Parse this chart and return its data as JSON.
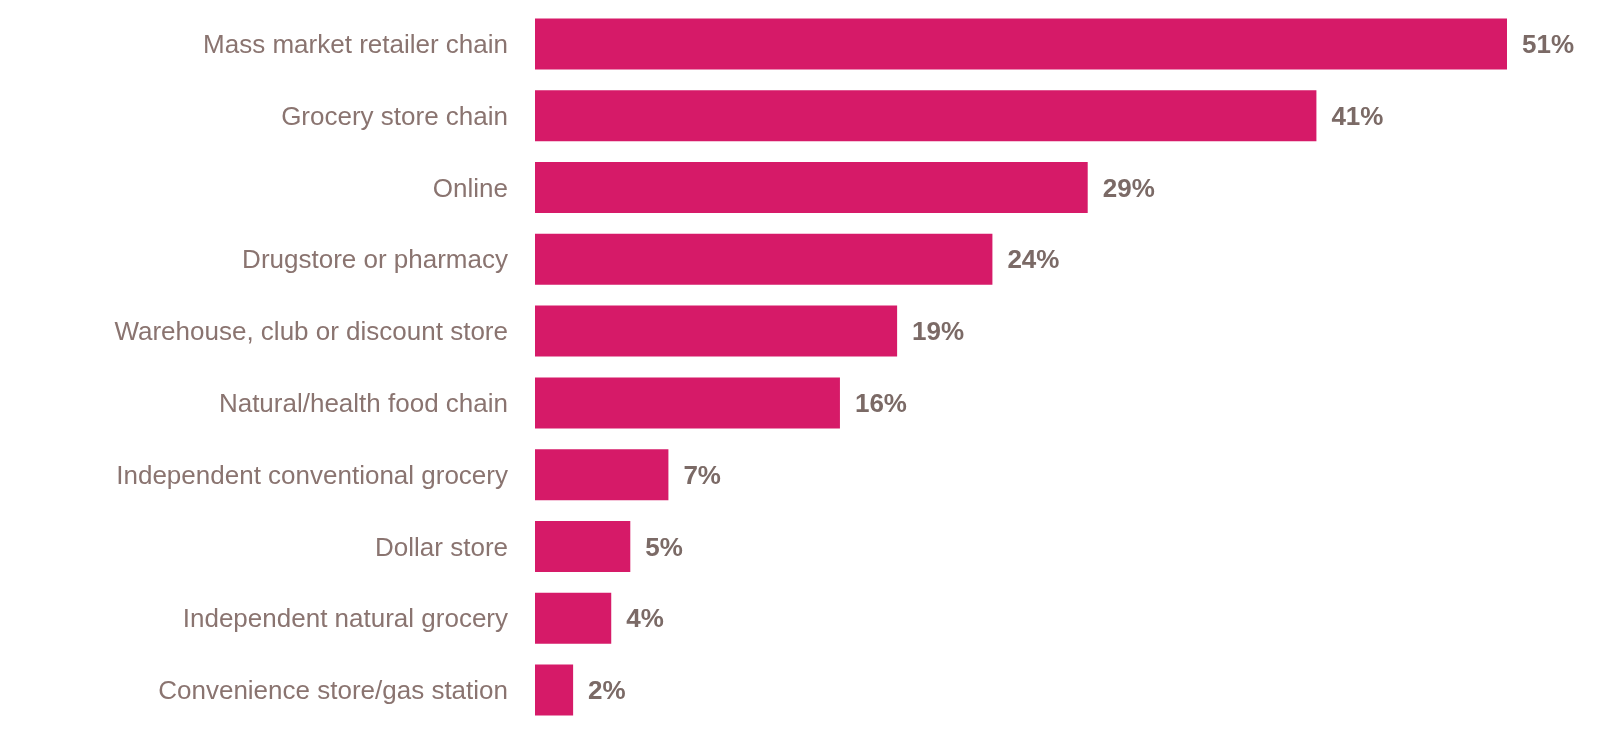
{
  "chart_data": {
    "type": "bar",
    "orientation": "horizontal",
    "value_labels": [
      "51%",
      "41%",
      "29%",
      "24%",
      "19%",
      "16%",
      "7%",
      "5%",
      "4%",
      "2%"
    ],
    "categories": [
      "Mass market retailer chain",
      "Grocery store chain",
      "Online",
      "Drugstore or pharmacy",
      "Warehouse, club or discount store",
      "Natural/health food chain",
      "Independent conventional grocery",
      "Dollar store",
      "Independent natural grocery",
      "Convenience store/gas station"
    ],
    "values": [
      51,
      41,
      29,
      24,
      19,
      16,
      7,
      5,
      4,
      2
    ],
    "color": "#d61a68"
  }
}
